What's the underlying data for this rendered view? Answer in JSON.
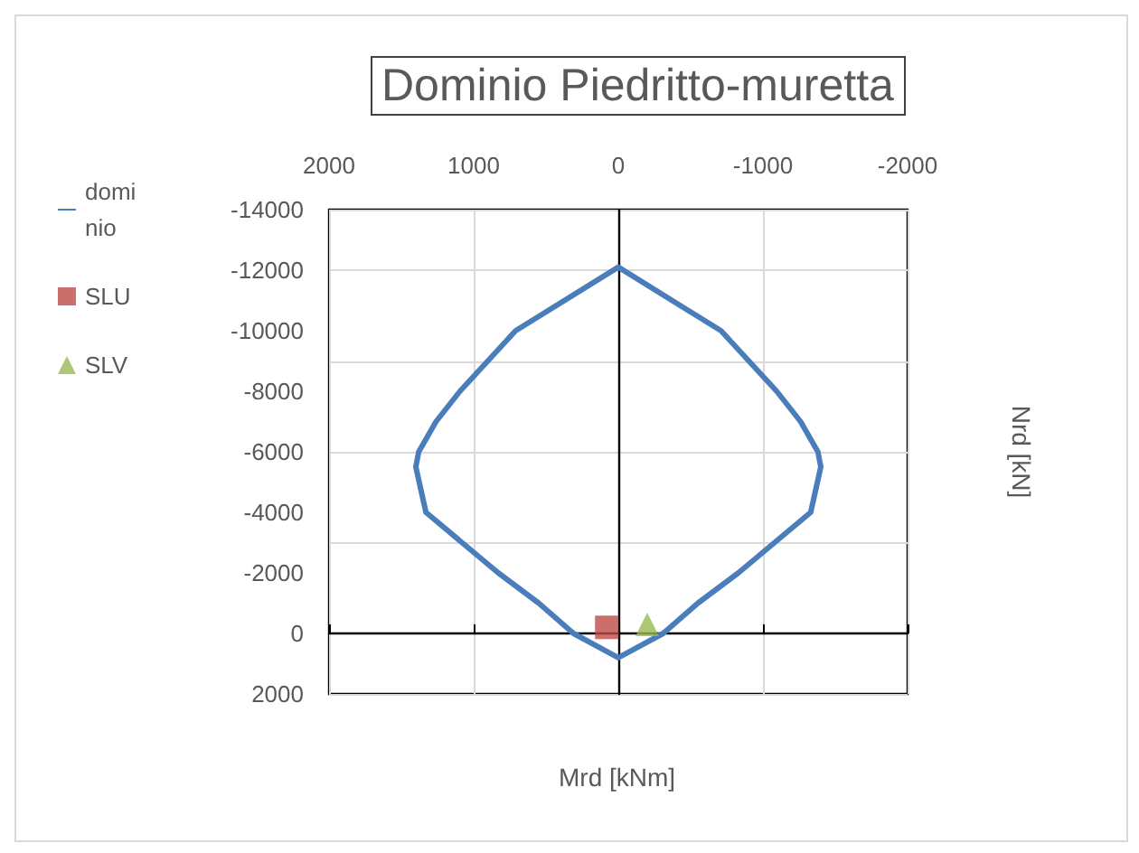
{
  "chart_data": {
    "type": "line",
    "title": "Dominio Piedritto-muretta",
    "xlabel": "Mrd [kNm]",
    "ylabel": "Nrd [kN]",
    "series": [
      {
        "name": "dominio",
        "color": "#4a7ebb",
        "x": [
          0,
          310,
          550,
          830,
          1330,
          1400,
          1380,
          1260,
          1095,
          710,
          0,
          -710,
          -1095,
          -1260,
          -1380,
          -1400,
          -1330,
          -830,
          -550,
          -310,
          -20
        ],
        "values": [
          800,
          0,
          -1000,
          -2000,
          -4000,
          -5500,
          -6000,
          -7000,
          -8000,
          -10000,
          -12100,
          -10000,
          -8000,
          -7000,
          -6000,
          -5500,
          -4000,
          -2000,
          -1000,
          0,
          750
        ]
      },
      {
        "name": "SLU",
        "type": "scatter",
        "marker": "square",
        "color": "#be4b48",
        "x": [
          80
        ],
        "values": [
          -200
        ]
      },
      {
        "name": "SLV",
        "type": "scatter",
        "marker": "triangle",
        "color": "#98b954",
        "x": [
          -200
        ],
        "values": [
          -300
        ]
      }
    ],
    "xlim": [
      2000,
      -2000
    ],
    "xticks": [
      2000,
      1000,
      0,
      -1000,
      -2000
    ],
    "ylim": [
      2000,
      -14000
    ],
    "yticks": [
      2000,
      0,
      -2000,
      -4000,
      -6000,
      -8000,
      -10000,
      -12000,
      -14000
    ],
    "grid": true,
    "legend": "left",
    "marker": "none",
    "line_style": "solid"
  }
}
